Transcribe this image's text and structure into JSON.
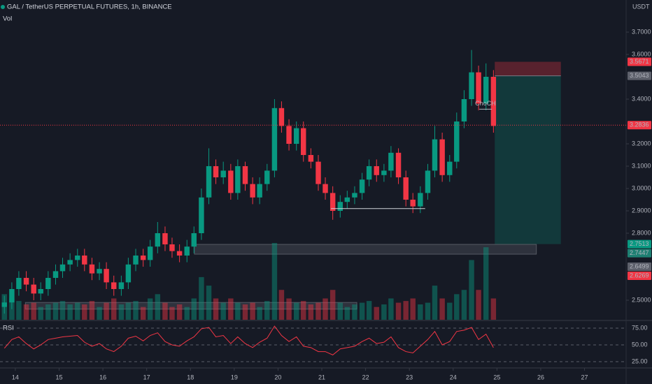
{
  "chart_data": {
    "type": "candlestick",
    "title": "GAL / TetherUS PERPETUAL FUTURES, 1h, BINANCE",
    "volume_label": "Vol",
    "y_axis_label": "USDT",
    "up_color": "#089981",
    "down_color": "#f23645",
    "x": [
      13.75,
      13.92,
      14.08,
      14.25,
      14.42,
      14.58,
      14.75,
      14.92,
      15.08,
      15.25,
      15.42,
      15.58,
      15.75,
      15.92,
      16.08,
      16.25,
      16.42,
      16.58,
      16.75,
      16.92,
      17.08,
      17.25,
      17.42,
      17.58,
      17.75,
      17.92,
      18.08,
      18.25,
      18.42,
      18.58,
      18.75,
      18.92,
      19.08,
      19.25,
      19.42,
      19.58,
      19.75,
      19.92,
      20.08,
      20.25,
      20.42,
      20.58,
      20.75,
      20.92,
      21.08,
      21.25,
      21.42,
      21.58,
      21.75,
      21.92,
      22.08,
      22.25,
      22.42,
      22.58,
      22.75,
      22.92,
      23.08,
      23.25,
      23.42,
      23.58,
      23.75,
      23.92,
      24.08,
      24.25,
      24.42,
      24.58,
      24.75,
      24.92
    ],
    "open": [
      2.47,
      2.49,
      2.55,
      2.6,
      2.57,
      2.53,
      2.55,
      2.6,
      2.63,
      2.66,
      2.68,
      2.7,
      2.66,
      2.62,
      2.64,
      2.58,
      2.55,
      2.58,
      2.66,
      2.7,
      2.68,
      2.74,
      2.8,
      2.75,
      2.72,
      2.7,
      2.74,
      2.8,
      2.96,
      3.1,
      3.05,
      3.08,
      2.98,
      3.1,
      3.02,
      2.96,
      3.02,
      3.08,
      3.36,
      3.28,
      3.2,
      3.27,
      3.15,
      3.12,
      3.02,
      2.98,
      2.9,
      2.94,
      2.96,
      2.98,
      3.04,
      3.1,
      3.06,
      3.08,
      3.16,
      3.05,
      2.95,
      2.92,
      2.98,
      3.08,
      3.22,
      3.06,
      3.12,
      3.3,
      3.4,
      3.52,
      3.38,
      3.5
    ],
    "high": [
      2.52,
      2.58,
      2.63,
      2.63,
      2.6,
      2.58,
      2.63,
      2.66,
      2.69,
      2.71,
      2.73,
      2.73,
      2.69,
      2.67,
      2.67,
      2.61,
      2.61,
      2.69,
      2.73,
      2.73,
      2.77,
      2.85,
      2.83,
      2.78,
      2.75,
      2.77,
      2.83,
      3.0,
      3.18,
      3.13,
      3.12,
      3.11,
      3.13,
      3.12,
      3.05,
      3.05,
      3.11,
      3.4,
      3.39,
      3.31,
      3.3,
      3.3,
      3.18,
      3.15,
      3.05,
      3.01,
      2.97,
      2.99,
      3.01,
      3.07,
      3.13,
      3.13,
      3.11,
      3.19,
      3.18,
      3.08,
      2.98,
      3.01,
      3.11,
      3.28,
      3.25,
      3.15,
      3.34,
      3.44,
      3.62,
      3.55,
      3.56,
      3.53
    ],
    "low": [
      2.44,
      2.46,
      2.52,
      2.54,
      2.5,
      2.5,
      2.52,
      2.57,
      2.6,
      2.63,
      2.65,
      2.63,
      2.59,
      2.59,
      2.55,
      2.52,
      2.52,
      2.55,
      2.63,
      2.65,
      2.65,
      2.71,
      2.72,
      2.69,
      2.67,
      2.67,
      2.71,
      2.77,
      2.93,
      3.02,
      3.02,
      2.95,
      2.95,
      2.99,
      2.93,
      2.93,
      2.99,
      3.05,
      3.25,
      3.17,
      3.17,
      3.12,
      3.09,
      2.99,
      2.95,
      2.86,
      2.87,
      2.91,
      2.93,
      2.95,
      3.01,
      3.03,
      3.03,
      3.05,
      3.02,
      2.92,
      2.89,
      2.89,
      2.95,
      3.05,
      3.03,
      3.03,
      3.09,
      3.27,
      3.37,
      3.35,
      3.35,
      3.25
    ],
    "close": [
      2.49,
      2.55,
      2.6,
      2.57,
      2.53,
      2.55,
      2.6,
      2.63,
      2.66,
      2.68,
      2.7,
      2.66,
      2.62,
      2.64,
      2.58,
      2.55,
      2.58,
      2.66,
      2.7,
      2.68,
      2.74,
      2.8,
      2.75,
      2.72,
      2.7,
      2.74,
      2.8,
      2.96,
      3.1,
      3.05,
      3.08,
      2.98,
      3.1,
      3.02,
      2.96,
      3.02,
      3.08,
      3.36,
      3.28,
      3.2,
      3.27,
      3.15,
      3.12,
      3.02,
      2.98,
      2.9,
      2.94,
      2.96,
      2.98,
      3.04,
      3.1,
      3.06,
      3.08,
      3.16,
      3.05,
      2.95,
      2.92,
      2.98,
      3.08,
      3.22,
      3.06,
      3.12,
      3.3,
      3.4,
      3.52,
      3.38,
      3.5,
      3.28
    ],
    "volume": [
      30,
      25,
      22,
      18,
      20,
      15,
      18,
      20,
      22,
      18,
      20,
      18,
      22,
      15,
      20,
      25,
      18,
      20,
      22,
      15,
      25,
      30,
      20,
      15,
      18,
      15,
      25,
      50,
      40,
      25,
      20,
      25,
      20,
      18,
      20,
      15,
      22,
      90,
      35,
      25,
      20,
      22,
      18,
      20,
      25,
      35,
      20,
      15,
      18,
      20,
      22,
      15,
      18,
      25,
      20,
      22,
      25,
      18,
      20,
      40,
      25,
      20,
      30,
      35,
      70,
      35,
      85,
      25
    ],
    "xlim": [
      13.65,
      27.95
    ],
    "xticks": [
      14,
      15,
      16,
      17,
      18,
      19,
      20,
      21,
      22,
      23,
      24,
      25,
      26,
      27
    ],
    "ylim": [
      2.4125,
      3.84375
    ],
    "yticks": [
      {
        "value": 3.7,
        "label": "3.7000"
      },
      {
        "value": 3.6,
        "label": "3.6000"
      },
      {
        "value": 3.4,
        "label": "3.4000"
      },
      {
        "value": 3.2,
        "label": "3.2000"
      },
      {
        "value": 3.1,
        "label": "3.1000"
      },
      {
        "value": 3.0,
        "label": "3.0000"
      },
      {
        "value": 2.9,
        "label": "2.9000"
      },
      {
        "value": 2.8,
        "label": "2.8000"
      },
      {
        "value": 2.5,
        "label": "2.5000"
      }
    ],
    "grid": false,
    "current_price": 3.2836,
    "price_badges": [
      {
        "value": 3.5671,
        "color": "#f23645"
      },
      {
        "value": 3.5043,
        "color": "#5d606b"
      },
      {
        "value": 3.2836,
        "color": "#f23645"
      },
      {
        "value": 2.7513,
        "color": "#089981"
      },
      {
        "value": 2.7447,
        "color": "#1e7f72"
      },
      {
        "value": 2.6499,
        "color": "#5d606b"
      },
      {
        "value": 2.6269,
        "color": "#f23645"
      }
    ],
    "zones": [
      {
        "x": [
          18.09,
          25.9
        ],
        "y": [
          2.706,
          2.75
        ]
      },
      {
        "x": [
          14.23,
          21.8
        ],
        "y": [
          2.46,
          2.49
        ]
      }
    ],
    "levels": [
      {
        "x": [
          21.21,
          23.36
        ],
        "value": 2.91
      }
    ],
    "position": {
      "x": [
        24.95,
        26.46
      ],
      "entry": 3.5043,
      "stop": 3.5671,
      "target": 2.7513
    },
    "annotations": [
      {
        "text": "ChoCH",
        "x": 24.5,
        "value": 3.38
      }
    ],
    "rsi": {
      "label": "RSI",
      "color": "#f23645",
      "values": [
        45,
        58,
        62,
        52,
        44,
        50,
        58,
        60,
        62,
        63,
        64,
        54,
        48,
        52,
        44,
        40,
        48,
        60,
        63,
        56,
        64,
        68,
        55,
        50,
        48,
        56,
        62,
        74,
        76,
        62,
        64,
        52,
        62,
        52,
        46,
        54,
        60,
        78,
        64,
        55,
        62,
        48,
        46,
        40,
        40,
        35,
        44,
        46,
        48,
        55,
        60,
        52,
        54,
        62,
        46,
        40,
        38,
        48,
        58,
        70,
        50,
        55,
        70,
        72,
        76,
        58,
        66,
        46
      ],
      "ylim": [
        17.7,
        83.3
      ],
      "yticks": [
        {
          "value": 75,
          "label": "75.00"
        },
        {
          "value": 50,
          "label": "50.00"
        },
        {
          "value": 25,
          "label": "25.00"
        }
      ]
    }
  }
}
